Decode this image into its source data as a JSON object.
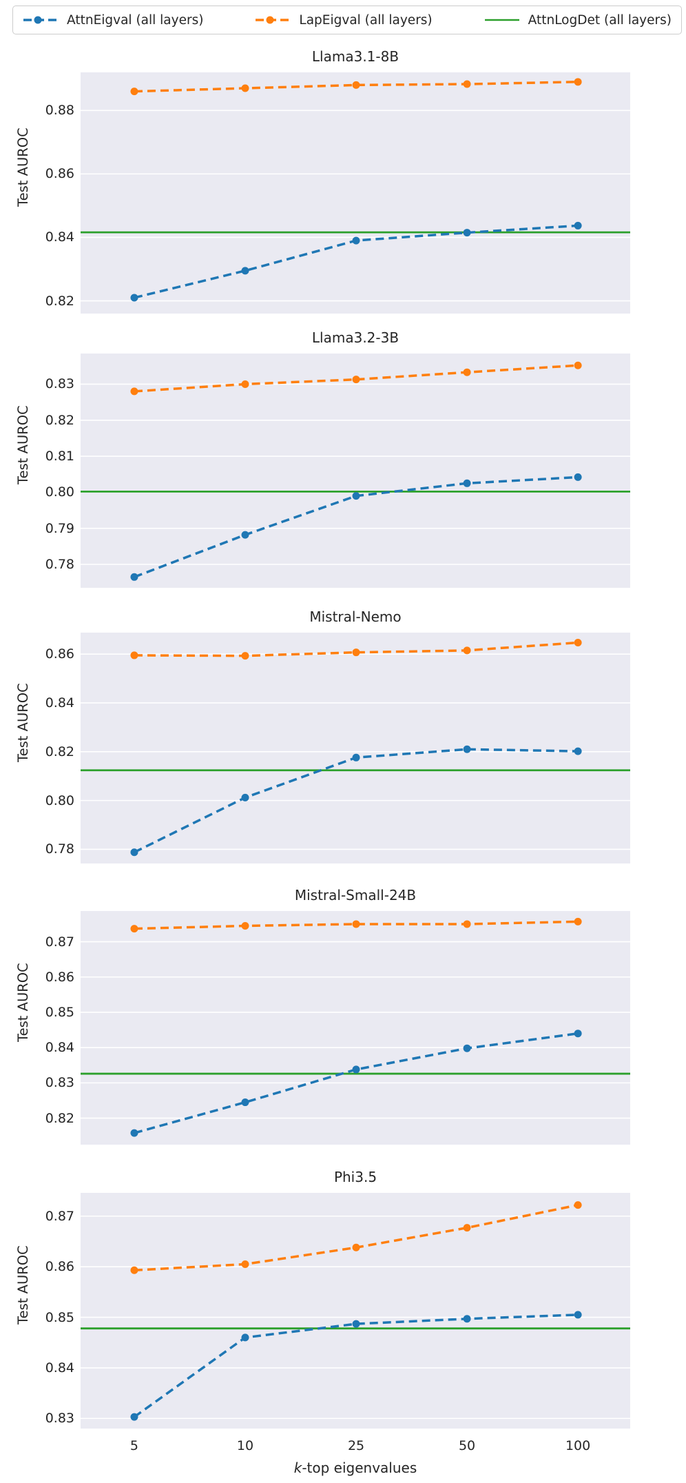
{
  "figure": {
    "ylabel": "Test AUROC",
    "xlabel_k": "k",
    "xlabel_rest": "-top eigenvalues"
  },
  "colors": {
    "blue": "#1f77b4",
    "orange": "#ff7f0e",
    "green": "#2ca02c",
    "axes_background": "#eaeaf2",
    "gridline": "#ffffff",
    "text": "#262626"
  },
  "legend": {
    "items": [
      {
        "label": "AttnEigval (all layers)",
        "color": "#1f77b4",
        "style": "dashed-marker"
      },
      {
        "label": "LapEigval (all layers)",
        "color": "#ff7f0e",
        "style": "dashed-marker"
      },
      {
        "label": "AttnLogDet (all layers)",
        "color": "#2ca02c",
        "style": "solid"
      }
    ]
  },
  "chart_data": [
    {
      "type": "line",
      "title": "Llama3.1-8B",
      "x": [
        5,
        10,
        25,
        50,
        100
      ],
      "x_tick_labels": [
        "5",
        "10",
        "25",
        "50",
        "100"
      ],
      "x_spacing": "uniform",
      "xlabel": "k-top eigenvalues",
      "ylabel": "Test AUROC",
      "ylim": [
        0.816,
        0.892
      ],
      "yticks": [
        "0.82",
        "0.84",
        "0.86",
        "0.88"
      ],
      "grid": true,
      "series": [
        {
          "name": "AttnEigval (all layers)",
          "color": "#1f77b4",
          "style": "dashed",
          "marker": "circle",
          "values": [
            0.821,
            0.8295,
            0.839,
            0.8415,
            0.8437
          ]
        },
        {
          "name": "LapEigval (all layers)",
          "color": "#ff7f0e",
          "style": "dashed",
          "marker": "circle",
          "values": [
            0.886,
            0.887,
            0.888,
            0.8883,
            0.889
          ]
        },
        {
          "name": "AttnLogDet (all layers)",
          "color": "#2ca02c",
          "style": "hline",
          "value": 0.8416
        }
      ]
    },
    {
      "type": "line",
      "title": "Llama3.2-3B",
      "x": [
        5,
        10,
        25,
        50,
        100
      ],
      "x_tick_labels": [
        "5",
        "10",
        "25",
        "50",
        "100"
      ],
      "x_spacing": "uniform",
      "xlabel": "k-top eigenvalues",
      "ylabel": "Test AUROC",
      "ylim": [
        0.7735,
        0.8385
      ],
      "yticks": [
        "0.78",
        "0.79",
        "0.80",
        "0.81",
        "0.82",
        "0.83"
      ],
      "grid": true,
      "series": [
        {
          "name": "AttnEigval (all layers)",
          "color": "#1f77b4",
          "style": "dashed",
          "marker": "circle",
          "values": [
            0.7765,
            0.7882,
            0.799,
            0.8025,
            0.8042
          ]
        },
        {
          "name": "LapEigval (all layers)",
          "color": "#ff7f0e",
          "style": "dashed",
          "marker": "circle",
          "values": [
            0.828,
            0.83,
            0.8313,
            0.8333,
            0.8352
          ]
        },
        {
          "name": "AttnLogDet (all layers)",
          "color": "#2ca02c",
          "style": "hline",
          "value": 0.8002
        }
      ]
    },
    {
      "type": "line",
      "title": "Mistral-Nemo",
      "x": [
        5,
        10,
        25,
        50,
        100
      ],
      "x_tick_labels": [
        "5",
        "10",
        "25",
        "50",
        "100"
      ],
      "x_spacing": "uniform",
      "xlabel": "k-top eigenvalues",
      "ylabel": "Test AUROC",
      "ylim": [
        0.7742,
        0.8688
      ],
      "yticks": [
        "0.78",
        "0.80",
        "0.82",
        "0.84",
        "0.86"
      ],
      "grid": true,
      "series": [
        {
          "name": "AttnEigval (all layers)",
          "color": "#1f77b4",
          "style": "dashed",
          "marker": "circle",
          "values": [
            0.7788,
            0.8012,
            0.8176,
            0.821,
            0.8202
          ]
        },
        {
          "name": "LapEigval (all layers)",
          "color": "#ff7f0e",
          "style": "dashed",
          "marker": "circle",
          "values": [
            0.8595,
            0.8593,
            0.8607,
            0.8615,
            0.8647
          ]
        },
        {
          "name": "AttnLogDet (all layers)",
          "color": "#2ca02c",
          "style": "hline",
          "value": 0.8124
        }
      ]
    },
    {
      "type": "line",
      "title": "Mistral-Small-24B",
      "x": [
        5,
        10,
        25,
        50,
        100
      ],
      "x_tick_labels": [
        "5",
        "10",
        "25",
        "50",
        "100"
      ],
      "x_spacing": "uniform",
      "xlabel": "k-top eigenvalues",
      "ylabel": "Test AUROC",
      "ylim": [
        0.8125,
        0.8787
      ],
      "yticks": [
        "0.82",
        "0.83",
        "0.84",
        "0.85",
        "0.86",
        "0.87"
      ],
      "grid": true,
      "series": [
        {
          "name": "AttnEigval (all layers)",
          "color": "#1f77b4",
          "style": "dashed",
          "marker": "circle",
          "values": [
            0.8158,
            0.8245,
            0.8338,
            0.8398,
            0.844
          ]
        },
        {
          "name": "LapEigval (all layers)",
          "color": "#ff7f0e",
          "style": "dashed",
          "marker": "circle",
          "values": [
            0.8737,
            0.8745,
            0.875,
            0.875,
            0.8757
          ]
        },
        {
          "name": "AttnLogDet (all layers)",
          "color": "#2ca02c",
          "style": "hline",
          "value": 0.8326
        }
      ]
    },
    {
      "type": "line",
      "title": "Phi3.5",
      "x": [
        5,
        10,
        25,
        50,
        100
      ],
      "x_tick_labels": [
        "5",
        "10",
        "25",
        "50",
        "100"
      ],
      "x_spacing": "uniform",
      "xlabel": "k-top eigenvalues",
      "ylabel": "Test AUROC",
      "ylim": [
        0.828,
        0.8746
      ],
      "yticks": [
        "0.83",
        "0.84",
        "0.85",
        "0.86",
        "0.87"
      ],
      "grid": true,
      "series": [
        {
          "name": "AttnEigval (all layers)",
          "color": "#1f77b4",
          "style": "dashed",
          "marker": "circle",
          "values": [
            0.8303,
            0.846,
            0.8487,
            0.8497,
            0.8505
          ]
        },
        {
          "name": "LapEigval (all layers)",
          "color": "#ff7f0e",
          "style": "dashed",
          "marker": "circle",
          "values": [
            0.8593,
            0.8605,
            0.8638,
            0.8677,
            0.8722
          ]
        },
        {
          "name": "AttnLogDet (all layers)",
          "color": "#2ca02c",
          "style": "hline",
          "value": 0.8478
        }
      ]
    }
  ]
}
